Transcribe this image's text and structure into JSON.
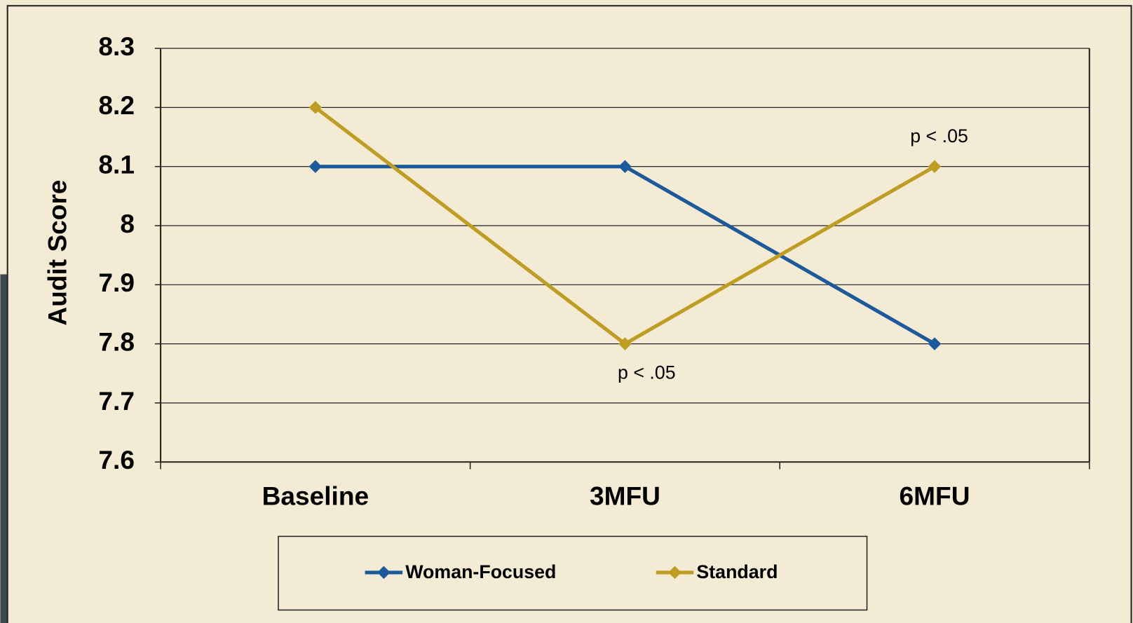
{
  "chart_data": {
    "type": "line",
    "y_label": "Audit Score",
    "categories": [
      "Baseline",
      "3MFU",
      "6MFU"
    ],
    "series": [
      {
        "name": "Woman-Focused",
        "color": "#1d5a9c",
        "values": [
          8.1,
          8.1,
          7.8
        ]
      },
      {
        "name": "Standard",
        "color": "#bf9c22",
        "values": [
          8.2,
          7.8,
          8.1
        ]
      }
    ],
    "ylim": [
      7.6,
      8.3
    ],
    "yticks": [
      7.6,
      7.7,
      7.8,
      7.9,
      8,
      8.1,
      8.2,
      8.3
    ],
    "grid": true,
    "legend": "bottom",
    "annotations": [
      "p < .05",
      "p < .05"
    ]
  }
}
